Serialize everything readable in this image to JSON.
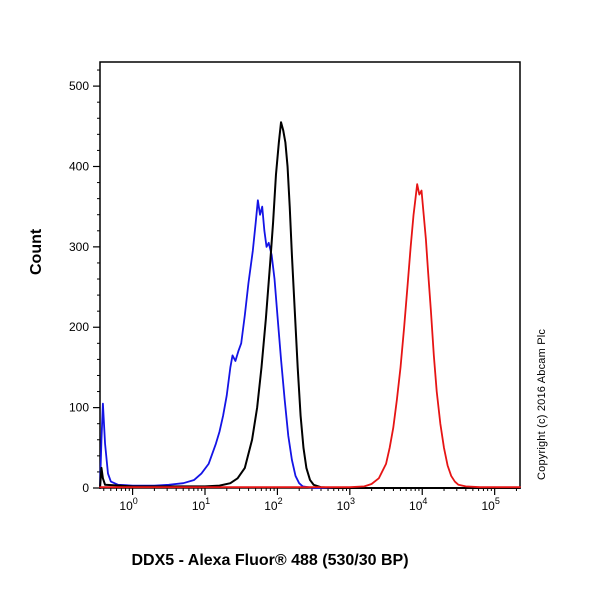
{
  "copyright": "Copyright (c) 2016 Abcam Plc",
  "chart_data": {
    "type": "line",
    "subtype": "flow-cytometry-histogram",
    "title": "DDX5 - Alexa Fluor® 488 (530/30 BP)",
    "xlabel": "DDX5 - Alexa Fluor® 488 (530/30 BP)",
    "ylabel": "Count",
    "x_scale": "log10",
    "xlim_log": [
      -0.45,
      5.35
    ],
    "ylim": [
      0,
      530
    ],
    "y_ticks": [
      0,
      100,
      200,
      300,
      400,
      500
    ],
    "y_minor_step": 20,
    "x_ticks": [
      {
        "base": "10",
        "exp": "0",
        "log": 0
      },
      {
        "base": "10",
        "exp": "1",
        "log": 1
      },
      {
        "base": "10",
        "exp": "2",
        "log": 2
      },
      {
        "base": "10",
        "exp": "3",
        "log": 3
      },
      {
        "base": "10",
        "exp": "4",
        "log": 4
      },
      {
        "base": "10",
        "exp": "5",
        "log": 5
      }
    ],
    "grid": false,
    "legend": "none",
    "series": [
      {
        "name": "blue-histogram",
        "color": "#1414e6",
        "stroke_width": 1.8,
        "points_logx_count": [
          [
            -0.45,
            0
          ],
          [
            -0.43,
            60
          ],
          [
            -0.41,
            105
          ],
          [
            -0.38,
            55
          ],
          [
            -0.34,
            18
          ],
          [
            -0.3,
            8
          ],
          [
            -0.2,
            4
          ],
          [
            0.0,
            3
          ],
          [
            0.3,
            3
          ],
          [
            0.5,
            4
          ],
          [
            0.7,
            6
          ],
          [
            0.85,
            10
          ],
          [
            0.95,
            18
          ],
          [
            1.05,
            30
          ],
          [
            1.15,
            55
          ],
          [
            1.2,
            70
          ],
          [
            1.25,
            90
          ],
          [
            1.3,
            115
          ],
          [
            1.35,
            150
          ],
          [
            1.38,
            165
          ],
          [
            1.42,
            158
          ],
          [
            1.46,
            170
          ],
          [
            1.5,
            180
          ],
          [
            1.55,
            215
          ],
          [
            1.6,
            255
          ],
          [
            1.63,
            275
          ],
          [
            1.66,
            295
          ],
          [
            1.7,
            330
          ],
          [
            1.73,
            358
          ],
          [
            1.76,
            340
          ],
          [
            1.79,
            350
          ],
          [
            1.82,
            320
          ],
          [
            1.85,
            300
          ],
          [
            1.88,
            305
          ],
          [
            1.92,
            290
          ],
          [
            1.96,
            260
          ],
          [
            2.0,
            215
          ],
          [
            2.05,
            160
          ],
          [
            2.1,
            110
          ],
          [
            2.15,
            65
          ],
          [
            2.2,
            35
          ],
          [
            2.25,
            15
          ],
          [
            2.3,
            6
          ],
          [
            2.35,
            2
          ],
          [
            2.5,
            0
          ],
          [
            5.35,
            0
          ]
        ]
      },
      {
        "name": "black-histogram",
        "color": "#000000",
        "stroke_width": 2,
        "points_logx_count": [
          [
            -0.45,
            0
          ],
          [
            -0.43,
            25
          ],
          [
            -0.41,
            12
          ],
          [
            -0.38,
            4
          ],
          [
            0.0,
            2
          ],
          [
            1.0,
            2
          ],
          [
            1.2,
            3
          ],
          [
            1.35,
            6
          ],
          [
            1.45,
            12
          ],
          [
            1.55,
            25
          ],
          [
            1.65,
            60
          ],
          [
            1.72,
            100
          ],
          [
            1.78,
            150
          ],
          [
            1.84,
            210
          ],
          [
            1.9,
            280
          ],
          [
            1.94,
            330
          ],
          [
            1.98,
            390
          ],
          [
            2.02,
            430
          ],
          [
            2.05,
            455
          ],
          [
            2.08,
            445
          ],
          [
            2.11,
            430
          ],
          [
            2.14,
            400
          ],
          [
            2.17,
            350
          ],
          [
            2.2,
            290
          ],
          [
            2.24,
            220
          ],
          [
            2.28,
            150
          ],
          [
            2.32,
            90
          ],
          [
            2.36,
            50
          ],
          [
            2.4,
            25
          ],
          [
            2.45,
            10
          ],
          [
            2.5,
            4
          ],
          [
            2.6,
            1
          ],
          [
            2.8,
            0
          ],
          [
            5.35,
            0
          ]
        ]
      },
      {
        "name": "red-histogram",
        "color": "#e61414",
        "stroke_width": 1.8,
        "points_logx_count": [
          [
            -0.45,
            1
          ],
          [
            3.0,
            1
          ],
          [
            3.2,
            2
          ],
          [
            3.3,
            5
          ],
          [
            3.4,
            12
          ],
          [
            3.5,
            30
          ],
          [
            3.55,
            50
          ],
          [
            3.6,
            75
          ],
          [
            3.65,
            110
          ],
          [
            3.7,
            150
          ],
          [
            3.75,
            200
          ],
          [
            3.8,
            255
          ],
          [
            3.84,
            300
          ],
          [
            3.88,
            340
          ],
          [
            3.9,
            355
          ],
          [
            3.93,
            378
          ],
          [
            3.96,
            365
          ],
          [
            3.99,
            370
          ],
          [
            4.02,
            340
          ],
          [
            4.05,
            310
          ],
          [
            4.08,
            270
          ],
          [
            4.12,
            220
          ],
          [
            4.16,
            165
          ],
          [
            4.2,
            120
          ],
          [
            4.25,
            80
          ],
          [
            4.3,
            50
          ],
          [
            4.35,
            28
          ],
          [
            4.4,
            15
          ],
          [
            4.45,
            8
          ],
          [
            4.5,
            4
          ],
          [
            4.6,
            2
          ],
          [
            4.8,
            1
          ],
          [
            5.35,
            1
          ]
        ]
      }
    ]
  }
}
